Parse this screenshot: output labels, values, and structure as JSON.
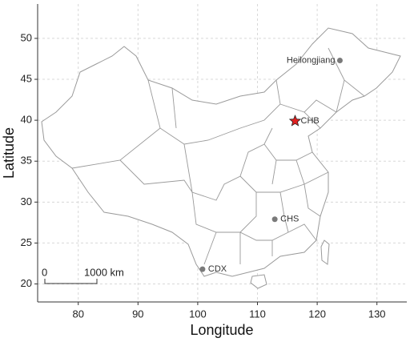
{
  "chart_data": {
    "type": "map",
    "x_label": "Longitude",
    "y_label": "Latitude",
    "xlim": [
      73.2,
      135
    ],
    "ylim": [
      17.8,
      54.2
    ],
    "xticks": [
      80,
      90,
      100,
      110,
      120,
      130
    ],
    "yticks": [
      20,
      25,
      30,
      35,
      40,
      45,
      50
    ],
    "grid": true,
    "points": [
      {
        "name": "Heilongjiang",
        "x": 123.8,
        "y": 47.3,
        "marker": "circle",
        "color": "#7a7a7a"
      },
      {
        "name": "CHB",
        "x": 116.3,
        "y": 39.9,
        "marker": "star",
        "color": "#e02020"
      },
      {
        "name": "CHS",
        "x": 112.9,
        "y": 27.9,
        "marker": "circle",
        "color": "#7a7a7a"
      },
      {
        "name": "CDX",
        "x": 100.8,
        "y": 21.8,
        "marker": "circle",
        "color": "#7a7a7a"
      }
    ],
    "scale_bar": {
      "start_label": "0",
      "end_label": "1000 km"
    }
  }
}
